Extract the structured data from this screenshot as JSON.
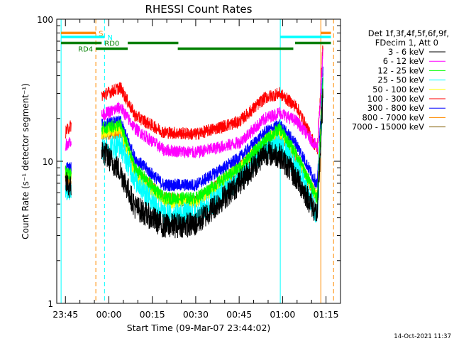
{
  "chart_data": {
    "type": "line",
    "title": "RHESSI Count Rates",
    "xlabel": "Start Time (09-Mar-07 23:44:02)",
    "ylabel": "Count Rate (s⁻¹ detector segment⁻¹)",
    "yscale": "log",
    "ylim": [
      1,
      100
    ],
    "xlim_min": [
      -2,
      96
    ],
    "x_units": "minutes after 23:44:02",
    "yticks": [
      {
        "value": 1,
        "label": "1"
      },
      {
        "value": 10,
        "label": "10"
      },
      {
        "value": 100,
        "label": "100"
      }
    ],
    "xticks": [
      {
        "value": 1,
        "label": "23:45"
      },
      {
        "value": 16,
        "label": "00:00"
      },
      {
        "value": 31,
        "label": "00:15"
      },
      {
        "value": 46,
        "label": "00:30"
      },
      {
        "value": 61,
        "label": "00:45"
      },
      {
        "value": 76,
        "label": "01:00"
      },
      {
        "value": 91,
        "label": "01:15"
      }
    ],
    "legend_header": [
      "Det 1f,3f,4f,5f,6f,9f,",
      "FDecim 1, Att 0"
    ],
    "legend_position": "right",
    "timestamp": "14-Oct-2021 11:37",
    "series": [
      {
        "name": "3 - 6 keV",
        "color": "#000000",
        "x": [
          1,
          3,
          13.5,
          20,
          25,
          35,
          46,
          61,
          70,
          75,
          81,
          88,
          90
        ],
        "y": [
          7,
          6.5,
          12,
          8.5,
          4.8,
          3.5,
          3.6,
          7,
          11.5,
          11,
          7.5,
          4.2,
          30
        ]
      },
      {
        "name": "6 - 12 keV",
        "color": "#ff00ff",
        "x": [
          1,
          3,
          13.5,
          20,
          25,
          35,
          46,
          61,
          70,
          75,
          81,
          88,
          90
        ],
        "y": [
          13,
          14,
          21,
          24,
          17,
          12,
          11.5,
          13.5,
          20,
          22,
          19,
          12.5,
          60
        ]
      },
      {
        "name": "12 - 25 keV",
        "color": "#00ff00",
        "x": [
          1,
          3,
          13.5,
          20,
          25,
          35,
          46,
          61,
          70,
          75,
          81,
          88,
          90
        ],
        "y": [
          8.5,
          8,
          17,
          18,
          9,
          5.5,
          5.5,
          9,
          14,
          17,
          11,
          5.5,
          38
        ]
      },
      {
        "name": "25 - 50 keV",
        "color": "#00ffff",
        "x": [
          1,
          3,
          13.5,
          20,
          25,
          35,
          46,
          61,
          70,
          75,
          81,
          88,
          90
        ],
        "y": [
          6.5,
          6.5,
          12,
          13,
          7.5,
          4.2,
          4.2,
          7.5,
          12.5,
          13,
          9,
          4.2,
          35
        ]
      },
      {
        "name": "50 - 100 keV",
        "color": "#ffff00",
        "x": [
          1,
          3,
          13.5,
          20,
          25,
          35,
          46,
          61,
          70,
          75,
          81,
          88,
          90
        ],
        "y": [
          8,
          8,
          16,
          17,
          8,
          5.2,
          5,
          9,
          14,
          16,
          10.5,
          5.5,
          36
        ]
      },
      {
        "name": "100 - 300 keV",
        "color": "#ff0000",
        "x": [
          1,
          3,
          13.5,
          20,
          25,
          35,
          46,
          61,
          70,
          75,
          81,
          88,
          90
        ],
        "y": [
          16,
          18,
          29,
          33,
          21,
          16,
          15.5,
          19,
          28,
          30,
          24,
          12,
          70
        ]
      },
      {
        "name": "300 - 800 keV",
        "color": "#0000ff",
        "x": [
          1,
          3,
          13.5,
          20,
          25,
          35,
          46,
          61,
          70,
          75,
          81,
          88,
          90
        ],
        "y": [
          9,
          9,
          18,
          19,
          10.5,
          6.8,
          6.8,
          10.5,
          16,
          18,
          13,
          6.8,
          45
        ]
      },
      {
        "name": "800 - 7000 keV",
        "color": "#ff8c00",
        "x": [
          1,
          3,
          13.5,
          20,
          25,
          35,
          46,
          61,
          70,
          75,
          81,
          88,
          90
        ],
        "y": [
          7.5,
          7.5,
          15.5,
          16,
          8.5,
          5.5,
          5.2,
          9,
          13.5,
          15.5,
          10.5,
          5.5,
          40
        ]
      },
      {
        "name": "7000 - 15000 keV",
        "color": "#8b6914",
        "x": [
          1,
          3,
          13.5,
          20,
          25,
          35,
          46,
          61,
          70,
          75,
          81,
          88,
          90
        ],
        "y": [
          7.5,
          7.5,
          15.5,
          16,
          8.5,
          5.5,
          5.2,
          9,
          13.5,
          15.5,
          10.5,
          5.5,
          40
        ]
      }
    ],
    "vertical_markers": [
      {
        "x": -0.5,
        "color": "#00ffff",
        "dash": "solid"
      },
      {
        "x": 11.5,
        "color": "#ff8c00",
        "dash": "dashed"
      },
      {
        "x": 14.5,
        "color": "#00ffff",
        "dash": "dashed"
      },
      {
        "x": 75.2,
        "color": "#00ffff",
        "dash": "solid"
      },
      {
        "x": 89.2,
        "color": "#ff8c00",
        "dash": "solid"
      },
      {
        "x": 93.6,
        "color": "#ff8c00",
        "dash": "dashed"
      }
    ],
    "flag_bars": [
      {
        "label": "S",
        "color": "#ff8c00",
        "y": 80,
        "segments": [
          [
            -0.5,
            11.5
          ],
          [
            89.2,
            92.7
          ]
        ]
      },
      {
        "label": "N",
        "color": "#00ffff",
        "y": 75,
        "segments": [
          [
            -0.5,
            14.5
          ],
          [
            75.2,
            92.7
          ]
        ]
      },
      {
        "label": "RD0",
        "color": "#008000",
        "y": 68,
        "segments": [
          [
            -0.5,
            13.5
          ],
          [
            22.5,
            40
          ],
          [
            80.3,
            92.7
          ]
        ]
      },
      {
        "label": "RD4",
        "color": "#008000",
        "y": 62,
        "segments": [
          [
            11.5,
            22.5
          ],
          [
            39.8,
            79.7
          ]
        ]
      }
    ]
  }
}
